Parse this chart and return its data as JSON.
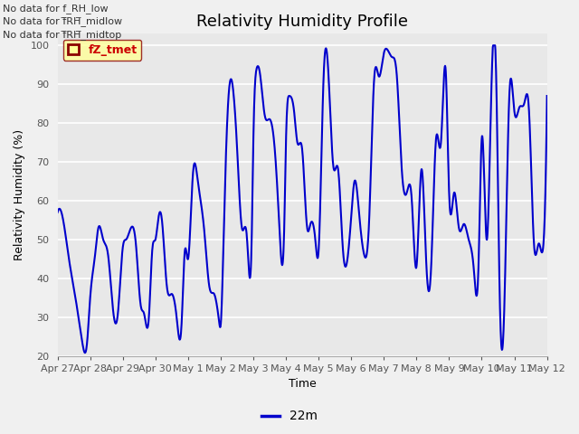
{
  "title": "Relativity Humidity Profile",
  "xlabel": "Time",
  "ylabel": "Relativity Humidity (%)",
  "ylim": [
    20,
    103
  ],
  "yticks": [
    20,
    30,
    40,
    50,
    60,
    70,
    80,
    90,
    100
  ],
  "xtick_labels": [
    "Apr 27",
    "Apr 28",
    "Apr 29",
    "Apr 30",
    "May 1",
    "May 2",
    "May 3",
    "May 4",
    "May 5",
    "May 6",
    "May 7",
    "May 8",
    "May 9",
    "May 10",
    "May 11",
    "May 12"
  ],
  "line_color": "#0000cc",
  "line_label": "22m",
  "legend_label": "fZ_tmet",
  "legend_text_color": "#cc0000",
  "legend_bg": "#ffff99",
  "legend_border": "#8b0000",
  "annotations": [
    "No data for f_RH_low",
    "No data for f̅RH̅_midlow",
    "No data for f̅RH̅_midtop"
  ],
  "annotation_color": "#333333",
  "fig_bg": "#f0f0f0",
  "plot_bg": "#e8e8e8",
  "grid_color": "#ffffff",
  "title_fontsize": 13,
  "axis_label_fontsize": 9,
  "tick_fontsize": 8,
  "annotation_fontsize": 8,
  "key_t": [
    0,
    0.15,
    0.35,
    0.55,
    0.75,
    0.9,
    1.0,
    1.15,
    1.25,
    1.4,
    1.55,
    1.7,
    1.85,
    2.0,
    2.1,
    2.25,
    2.4,
    2.55,
    2.65,
    2.8,
    2.9,
    3.0,
    3.1,
    3.2,
    3.35,
    3.5,
    3.65,
    3.8,
    3.9,
    4.0,
    4.15,
    4.3,
    4.5,
    4.65,
    4.8,
    4.95,
    5.0,
    5.1,
    5.25,
    5.4,
    5.5,
    5.65,
    5.8,
    5.95,
    6.0,
    6.1,
    6.2,
    6.35,
    6.5,
    6.65,
    6.8,
    6.95,
    7.0,
    7.1,
    7.25,
    7.35,
    7.5,
    7.65,
    7.75,
    7.9,
    8.0,
    8.15,
    8.3,
    8.45,
    8.6,
    8.75,
    8.9,
    9.0,
    9.1,
    9.25,
    9.4,
    9.55,
    9.7,
    9.85,
    10.0,
    10.1,
    10.25,
    10.4,
    10.55,
    10.7,
    10.85,
    11.0,
    11.15,
    11.3,
    11.45,
    11.6,
    11.75,
    11.9,
    12.0,
    12.15,
    12.3,
    12.45,
    12.6,
    12.75,
    12.9,
    13.0,
    13.15,
    13.3,
    13.45,
    13.55,
    13.7,
    13.85,
    14.0,
    14.15,
    14.3,
    14.45,
    14.6,
    14.75,
    14.9,
    15.0
  ],
  "key_v": [
    57,
    56,
    45,
    35,
    24,
    23,
    35,
    46,
    53,
    50,
    46,
    32,
    31,
    48,
    50,
    53,
    49,
    33,
    31,
    30,
    47,
    50,
    56,
    55,
    38,
    36,
    30,
    28,
    47,
    45,
    67,
    65,
    52,
    38,
    36,
    29,
    28,
    54,
    88,
    87,
    74,
    53,
    51,
    50,
    75,
    94,
    93,
    82,
    81,
    74,
    53,
    54,
    75,
    87,
    83,
    75,
    73,
    53,
    54,
    50,
    47,
    91,
    93,
    69,
    68,
    47,
    46,
    56,
    65,
    56,
    46,
    55,
    91,
    92,
    98,
    99,
    97,
    92,
    68,
    62,
    61,
    43,
    68,
    44,
    43,
    76,
    75,
    93,
    62,
    62,
    53,
    54,
    50,
    43,
    43,
    76,
    50,
    90,
    89,
    36,
    35,
    88,
    83,
    84,
    85,
    83,
    49,
    49,
    50,
    87
  ]
}
